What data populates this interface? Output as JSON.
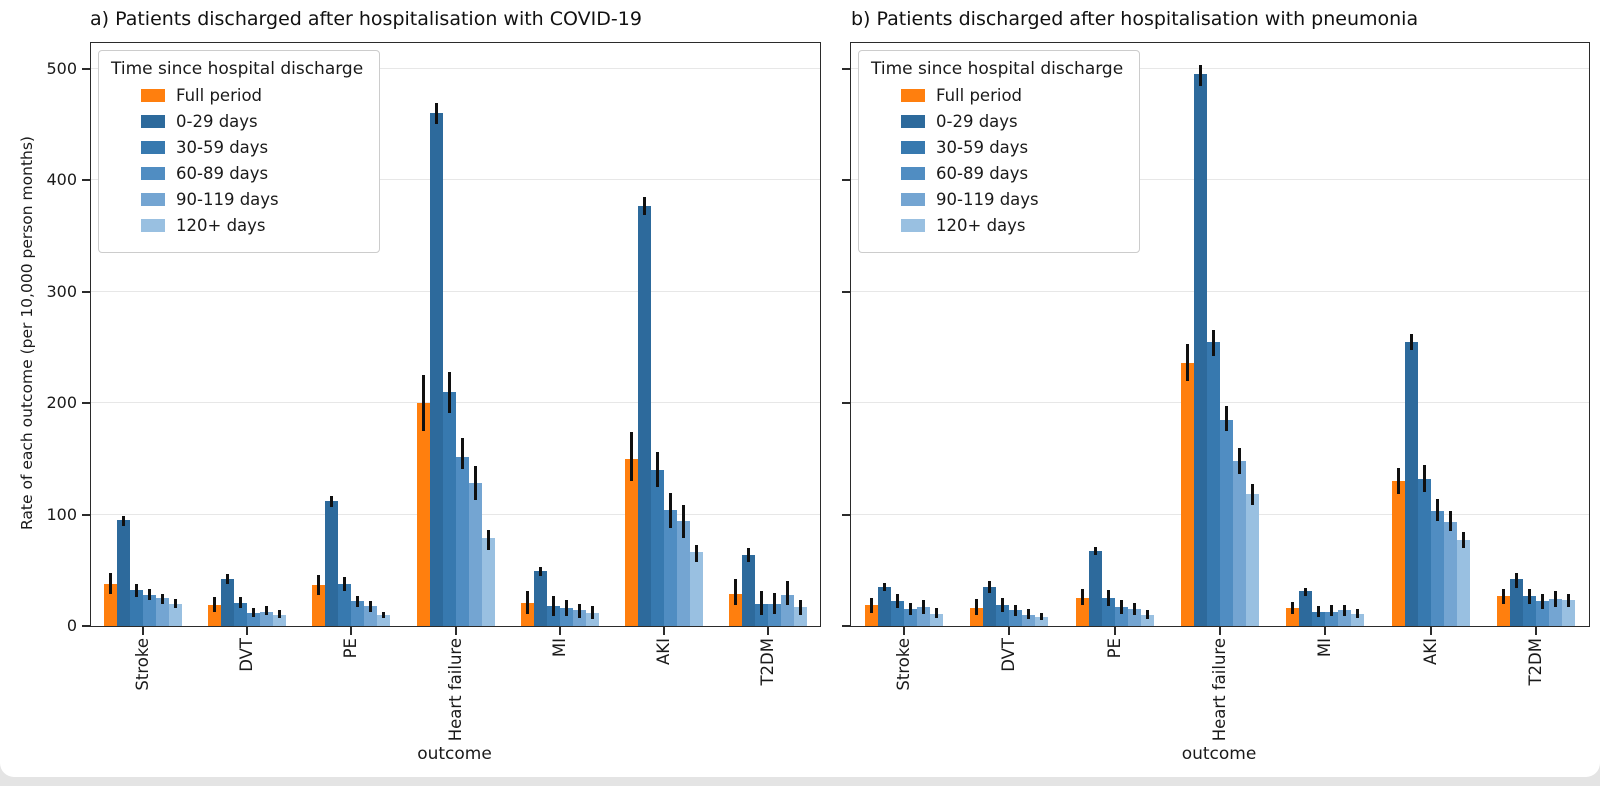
{
  "page": {
    "background": "#e4e4e4",
    "card_background": "#ffffff"
  },
  "figure": {
    "ylabel": "Rate of each outcome (per 10,000 person months)",
    "xlabel": "outcome",
    "yticks": [
      0,
      100,
      200,
      300,
      400,
      500
    ],
    "ymax": 523,
    "text_color": "#1a1a1a",
    "spine_color": "#2b2b2b",
    "grid_color": "#e7e7e7",
    "error_bar_color": "#101010"
  },
  "legend": {
    "title": "Time since hospital discharge",
    "entries": [
      {
        "label": "Full period",
        "color": "#ff7f0e"
      },
      {
        "label": "0-29 days",
        "color": "#2d6a9c"
      },
      {
        "label": "30-59 days",
        "color": "#3779af"
      },
      {
        "label": "60-89 days",
        "color": "#508dc2"
      },
      {
        "label": "90-119 days",
        "color": "#74a5d2"
      },
      {
        "label": "120+ days",
        "color": "#99c0e1"
      }
    ]
  },
  "chart_data": [
    {
      "type": "bar",
      "panel": "a",
      "title": "a) Patients discharged after hospitalisation with COVID-19",
      "xlabel": "outcome",
      "ylim": [
        0,
        523
      ],
      "grid": true,
      "legend_position": "upper-left",
      "categories": [
        "Stroke",
        "DVT",
        "PE",
        "Heart failure",
        "MI",
        "AKI",
        "T2DM"
      ],
      "series": [
        {
          "name": "Full period",
          "color": "#ff7f0e",
          "values": [
            38,
            19,
            37,
            200,
            21,
            150,
            29
          ],
          "ci_low": [
            29,
            13,
            28,
            175,
            11,
            130,
            19
          ],
          "ci_high": [
            48,
            26,
            46,
            225,
            31,
            174,
            42
          ]
        },
        {
          "name": "0-29 days",
          "color": "#2d6a9c",
          "values": [
            95,
            42,
            112,
            460,
            49,
            377,
            64
          ],
          "ci_low": [
            90,
            38,
            107,
            450,
            45,
            369,
            57
          ],
          "ci_high": [
            99,
            47,
            117,
            469,
            53,
            385,
            70
          ]
        },
        {
          "name": "30-59 days",
          "color": "#3779af",
          "values": [
            32,
            21,
            38,
            210,
            18,
            140,
            20
          ],
          "ci_low": [
            26,
            16,
            31,
            191,
            9,
            125,
            10
          ],
          "ci_high": [
            38,
            26,
            44,
            228,
            27,
            156,
            31
          ]
        },
        {
          "name": "60-89 days",
          "color": "#508dc2",
          "values": [
            28,
            12,
            22,
            152,
            16,
            104,
            20
          ],
          "ci_low": [
            23,
            8,
            17,
            141,
            9,
            88,
            11
          ],
          "ci_high": [
            33,
            16,
            27,
            169,
            23,
            119,
            30
          ]
        },
        {
          "name": "90-119 days",
          "color": "#74a5d2",
          "values": [
            25,
            13,
            18,
            128,
            14,
            94,
            28
          ],
          "ci_low": [
            20,
            10,
            13,
            113,
            7,
            79,
            19
          ],
          "ci_high": [
            29,
            18,
            22,
            144,
            20,
            109,
            40
          ]
        },
        {
          "name": "120+ days",
          "color": "#99c0e1",
          "values": [
            20,
            10,
            10,
            79,
            12,
            66,
            17
          ],
          "ci_low": [
            16,
            7,
            7,
            68,
            6,
            57,
            10
          ],
          "ci_high": [
            24,
            14,
            13,
            86,
            18,
            73,
            23
          ]
        }
      ]
    },
    {
      "type": "bar",
      "panel": "b",
      "title": "b) Patients discharged after hospitalisation with pneumonia",
      "xlabel": "outcome",
      "ylim": [
        0,
        523
      ],
      "grid": true,
      "legend_position": "upper-left",
      "categories": [
        "Stroke",
        "DVT",
        "PE",
        "Heart failure",
        "MI",
        "AKI",
        "T2DM"
      ],
      "series": [
        {
          "name": "Full period",
          "color": "#ff7f0e",
          "values": [
            19,
            16,
            25,
            236,
            16,
            130,
            27
          ],
          "ci_low": [
            12,
            10,
            19,
            220,
            11,
            118,
            20
          ],
          "ci_high": [
            25,
            24,
            33,
            253,
            22,
            142,
            33
          ]
        },
        {
          "name": "0-29 days",
          "color": "#2d6a9c",
          "values": [
            35,
            35,
            67,
            495,
            31,
            255,
            42
          ],
          "ci_low": [
            31,
            30,
            64,
            484,
            27,
            248,
            34
          ],
          "ci_high": [
            39,
            40,
            71,
            503,
            34,
            262,
            48
          ]
        },
        {
          "name": "30-59 days",
          "color": "#3779af",
          "values": [
            22,
            19,
            25,
            255,
            13,
            132,
            27
          ],
          "ci_low": [
            16,
            13,
            18,
            242,
            8,
            120,
            20
          ],
          "ci_high": [
            29,
            25,
            32,
            266,
            18,
            144,
            33
          ]
        },
        {
          "name": "60-89 days",
          "color": "#508dc2",
          "values": [
            15,
            14,
            17,
            185,
            13,
            103,
            22
          ],
          "ci_low": [
            10,
            9,
            11,
            175,
            9,
            94,
            15
          ],
          "ci_high": [
            21,
            19,
            23,
            197,
            19,
            114,
            29
          ]
        },
        {
          "name": "90-119 days",
          "color": "#74a5d2",
          "values": [
            17,
            10,
            15,
            148,
            14,
            93,
            24
          ],
          "ci_low": [
            11,
            6,
            10,
            136,
            9,
            85,
            17
          ],
          "ci_high": [
            23,
            15,
            21,
            160,
            19,
            103,
            31
          ]
        },
        {
          "name": "120+ days",
          "color": "#99c0e1",
          "values": [
            11,
            8,
            10,
            118,
            11,
            77,
            23
          ],
          "ci_low": [
            7,
            5,
            6,
            109,
            7,
            70,
            17
          ],
          "ci_high": [
            16,
            12,
            14,
            127,
            15,
            84,
            29
          ]
        }
      ]
    }
  ]
}
